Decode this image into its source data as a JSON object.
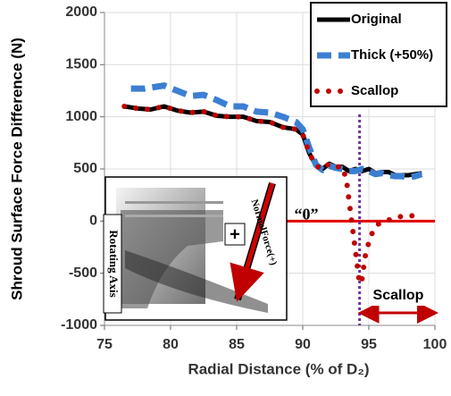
{
  "chart_data": {
    "type": "line",
    "y_label": "Shroud Surface Force Difference (N)",
    "x_label": "Radial Distance (% of D₂)",
    "xlim": [
      75,
      100
    ],
    "xticks": [
      75,
      80,
      85,
      90,
      95,
      100
    ],
    "ylim": [
      -1000,
      2000
    ],
    "yticks": [
      -1000,
      -500,
      0,
      500,
      1000,
      1500,
      2000
    ],
    "grid": true,
    "legend": "top-right",
    "series": [
      {
        "name": "Original",
        "color": "#000000",
        "style": "solid",
        "x": [
          76.5,
          77.5,
          78.5,
          79.5,
          80.5,
          81.5,
          82.5,
          83.5,
          84.5,
          85.5,
          86.5,
          87.5,
          88.5,
          89.5,
          90,
          90.5,
          91,
          91.5,
          92,
          92.5,
          93,
          93.5,
          94,
          94.5,
          95,
          95.5,
          96,
          96.5,
          97,
          97.5,
          98,
          98.5,
          99
        ],
        "values": [
          1100,
          1080,
          1070,
          1100,
          1060,
          1040,
          1050,
          1010,
          1000,
          1000,
          960,
          950,
          900,
          880,
          830,
          650,
          530,
          500,
          550,
          520,
          520,
          480,
          500,
          480,
          500,
          460,
          470,
          470,
          440,
          440,
          440,
          450,
          460
        ]
      },
      {
        "name": "Thick (+50%)",
        "color": "#3c7fd2",
        "style": "dashed",
        "x": [
          77,
          78,
          79.5,
          80.5,
          81.5,
          82.5,
          83.5,
          84.5,
          85.5,
          86.5,
          87.5,
          88.5,
          89.5,
          90,
          90.5,
          91,
          91.5,
          92,
          92.5,
          93,
          93.5,
          94,
          94.5,
          95,
          95.5,
          96,
          96.5,
          97,
          97.5,
          98,
          98.5,
          99
        ],
        "values": [
          1270,
          1270,
          1300,
          1250,
          1200,
          1210,
          1160,
          1100,
          1100,
          1050,
          1040,
          1000,
          950,
          880,
          700,
          540,
          490,
          530,
          510,
          500,
          480,
          480,
          500,
          480,
          450,
          460,
          440,
          430,
          430,
          420,
          430,
          450
        ]
      },
      {
        "name": "Scallop",
        "color": "#c00000",
        "style": "dotted",
        "x": [
          76.5,
          77.5,
          78.5,
          79.5,
          80.5,
          81.5,
          82.5,
          83.5,
          84.5,
          85.5,
          86.5,
          87.5,
          88.5,
          89.5,
          90,
          90.5,
          91,
          91.5,
          92,
          92.5,
          93,
          93.3,
          93.5,
          93.7,
          93.9,
          94.1,
          94.3,
          94.5,
          94.7,
          95,
          95.3,
          95.7,
          96.2,
          97,
          97.6,
          98.2,
          99
        ],
        "values": [
          1100,
          1080,
          1070,
          1100,
          1060,
          1040,
          1050,
          1010,
          1000,
          1000,
          960,
          950,
          900,
          880,
          830,
          650,
          530,
          500,
          550,
          520,
          520,
          400,
          200,
          0,
          -200,
          -400,
          -600,
          -550,
          -350,
          -200,
          -100,
          -30,
          0,
          30,
          50,
          50,
          60
        ]
      }
    ],
    "vline": 94.3,
    "hline": 0,
    "annotations": {
      "zero": "“0”",
      "scallop": "Scallop",
      "rotating_axis": "Rotating Axis",
      "normal_force": "NormalForce(+)",
      "plus": "+"
    }
  }
}
